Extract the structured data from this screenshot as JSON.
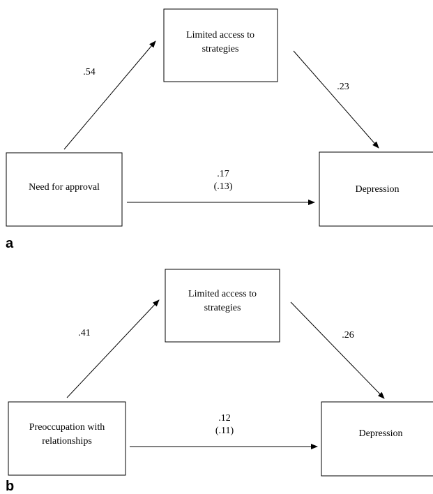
{
  "panels": [
    {
      "label": "a",
      "mediator": {
        "lines": [
          "Limited access to",
          "strategies"
        ]
      },
      "predictor": {
        "lines": [
          "Need for approval"
        ]
      },
      "outcome": {
        "lines": [
          "Depression"
        ]
      },
      "path_a": ".54",
      "path_b": ".23",
      "path_c": ".17",
      "path_c_direct": "(.13)"
    },
    {
      "label": "b",
      "mediator": {
        "lines": [
          "Limited access to",
          "strategies"
        ]
      },
      "predictor": {
        "lines": [
          "Preoccupation with",
          "relationships"
        ]
      },
      "outcome": {
        "lines": [
          "Depression"
        ]
      },
      "path_a": ".41",
      "path_b": ".26",
      "path_c": ".12",
      "path_c_direct": "(.11)"
    }
  ]
}
